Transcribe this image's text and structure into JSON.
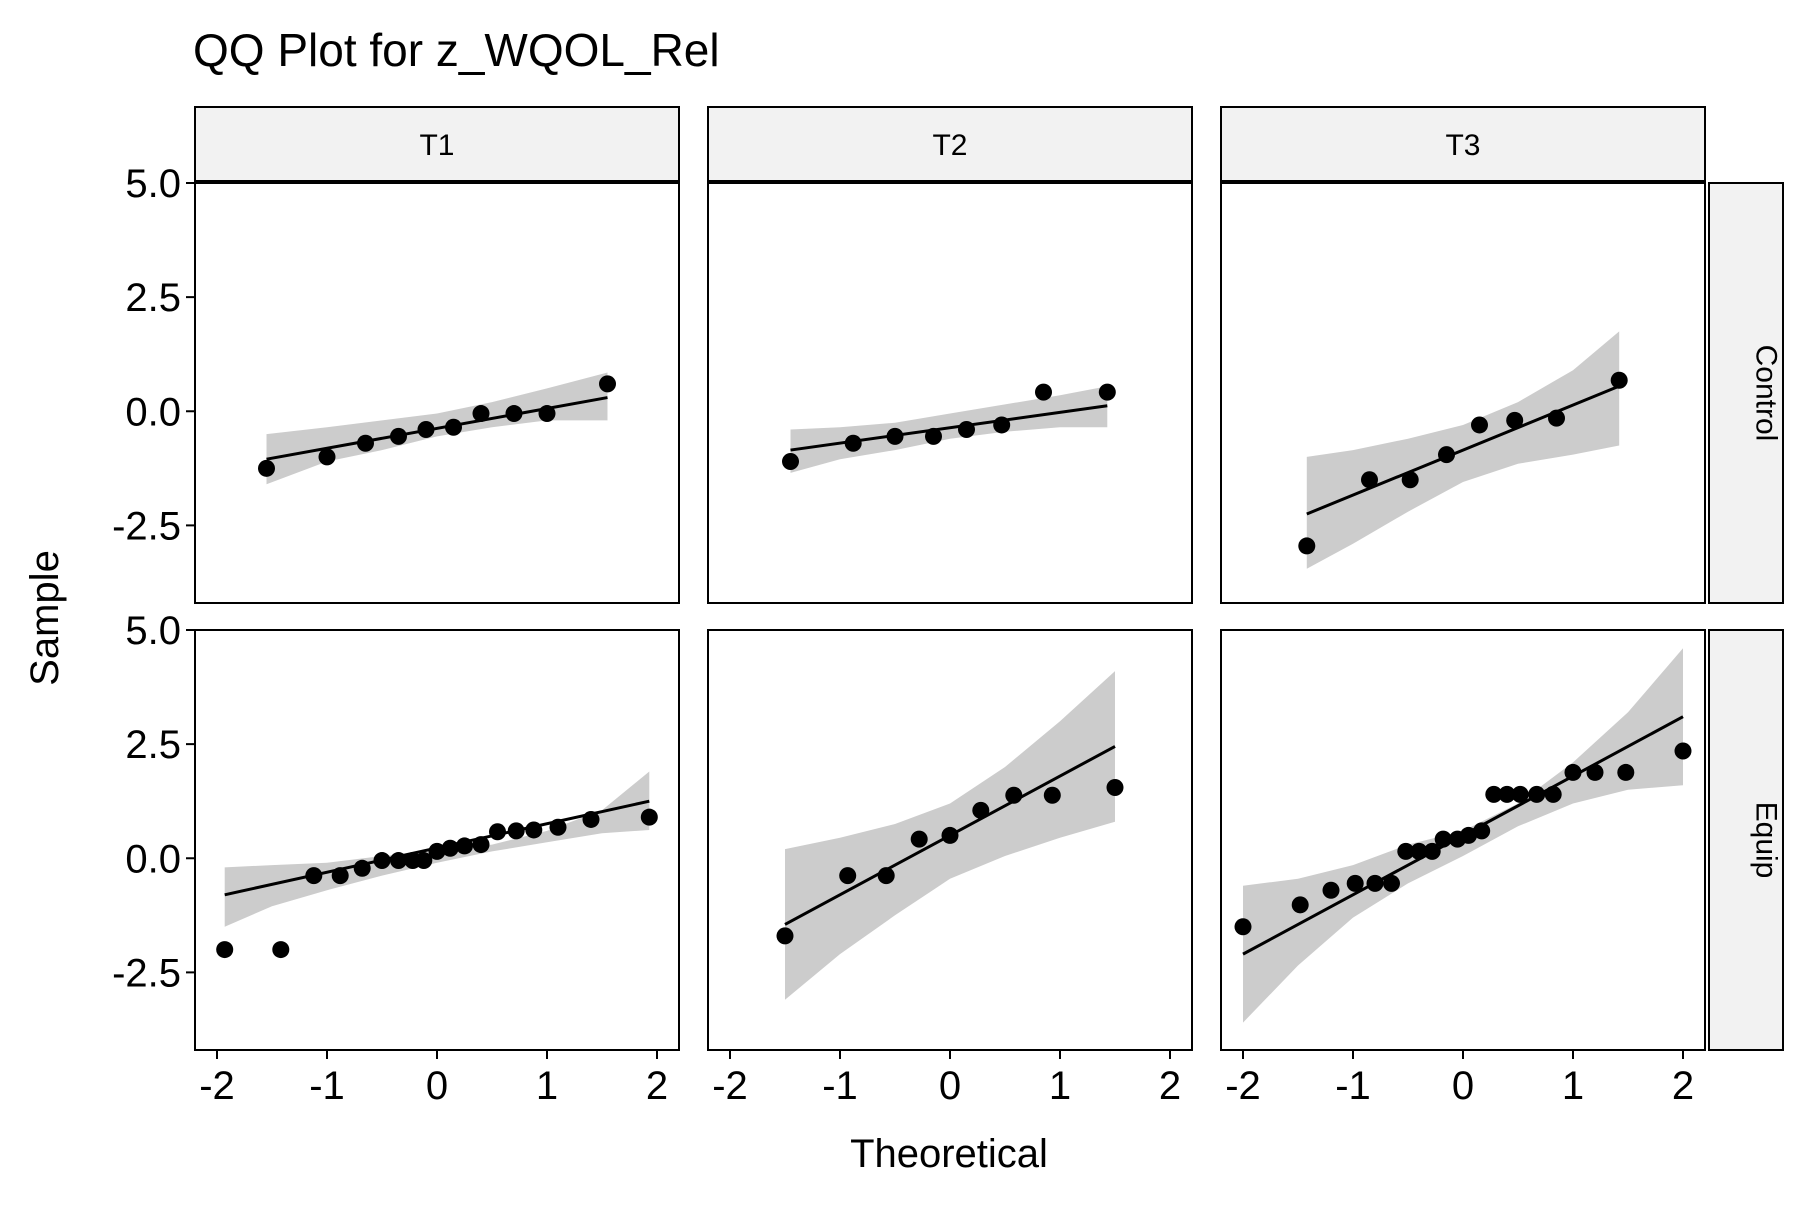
{
  "chart_data": {
    "type": "scatter",
    "title": "QQ Plot for z_WQOL_Rel",
    "xlabel": "Theoretical",
    "ylabel": "Sample",
    "xlim": [
      -2.2,
      2.2
    ],
    "ylim": [
      -4.2,
      5.0
    ],
    "x_ticks": [
      -2,
      -1,
      0,
      1,
      2
    ],
    "x_tick_labels": [
      "-2",
      "-1",
      "0",
      "1",
      "2"
    ],
    "y_ticks": [
      5.0,
      2.5,
      0.0,
      -2.5
    ],
    "y_tick_labels": [
      "5.0",
      "2.5",
      "0.0",
      "-2.5"
    ],
    "columns": [
      "T1",
      "T2",
      "T3"
    ],
    "rows": [
      "Control",
      "Equip"
    ],
    "grid": false,
    "colors": {
      "points": "#000000",
      "band": "#cccccc",
      "strip": "#f2f2f2",
      "line": "#000000"
    },
    "panels": [
      {
        "col": "T1",
        "row": "Control",
        "points": [
          [
            -1.55,
            -1.25
          ],
          [
            -1.0,
            -1.0
          ],
          [
            -0.65,
            -0.7
          ],
          [
            -0.35,
            -0.55
          ],
          [
            -0.1,
            -0.4
          ],
          [
            0.15,
            -0.35
          ],
          [
            0.4,
            -0.05
          ],
          [
            0.7,
            -0.05
          ],
          [
            1.0,
            -0.05
          ],
          [
            1.55,
            0.6
          ]
        ],
        "line": [
          [
            -1.55,
            -1.05
          ],
          [
            1.55,
            0.3
          ]
        ],
        "band": {
          "x": [
            -1.55,
            -1.0,
            -0.5,
            0,
            0.5,
            1.0,
            1.55
          ],
          "lower": [
            -1.6,
            -1.1,
            -0.85,
            -0.55,
            -0.35,
            -0.2,
            -0.2
          ],
          "upper": [
            -0.5,
            -0.35,
            -0.2,
            -0.05,
            0.2,
            0.5,
            0.85
          ]
        }
      },
      {
        "col": "T2",
        "row": "Control",
        "points": [
          [
            -1.45,
            -1.1
          ],
          [
            -0.88,
            -0.7
          ],
          [
            -0.5,
            -0.55
          ],
          [
            -0.15,
            -0.55
          ],
          [
            0.15,
            -0.4
          ],
          [
            0.47,
            -0.3
          ],
          [
            0.85,
            0.42
          ],
          [
            1.43,
            0.42
          ]
        ],
        "line": [
          [
            -1.45,
            -0.85
          ],
          [
            1.43,
            0.12
          ]
        ],
        "band": {
          "x": [
            -1.45,
            -1.0,
            -0.5,
            0,
            0.5,
            1.0,
            1.43
          ],
          "lower": [
            -1.35,
            -1.05,
            -0.85,
            -0.6,
            -0.45,
            -0.35,
            -0.35
          ],
          "upper": [
            -0.4,
            -0.35,
            -0.25,
            -0.05,
            0.15,
            0.35,
            0.55
          ]
        }
      },
      {
        "col": "T3",
        "row": "Control",
        "points": [
          [
            -1.42,
            -2.95
          ],
          [
            -0.85,
            -1.5
          ],
          [
            -0.48,
            -1.5
          ],
          [
            -0.15,
            -0.95
          ],
          [
            0.15,
            -0.3
          ],
          [
            0.47,
            -0.2
          ],
          [
            0.85,
            -0.15
          ],
          [
            1.42,
            0.68
          ]
        ],
        "line": [
          [
            -1.42,
            -2.25
          ],
          [
            1.42,
            0.55
          ]
        ],
        "band": {
          "x": [
            -1.42,
            -1.0,
            -0.5,
            0,
            0.5,
            1.0,
            1.42
          ],
          "lower": [
            -3.45,
            -2.9,
            -2.2,
            -1.55,
            -1.15,
            -0.95,
            -0.75
          ],
          "upper": [
            -1.0,
            -0.85,
            -0.6,
            -0.3,
            0.2,
            0.9,
            1.75
          ]
        }
      },
      {
        "col": "T1",
        "row": "Equip",
        "points": [
          [
            -1.93,
            -2.0
          ],
          [
            -1.42,
            -2.0
          ],
          [
            -1.12,
            -0.38
          ],
          [
            -0.88,
            -0.38
          ],
          [
            -0.68,
            -0.22
          ],
          [
            -0.5,
            -0.05
          ],
          [
            -0.35,
            -0.05
          ],
          [
            -0.22,
            -0.05
          ],
          [
            -0.12,
            -0.05
          ],
          [
            0.0,
            0.15
          ],
          [
            0.12,
            0.22
          ],
          [
            0.25,
            0.27
          ],
          [
            0.4,
            0.3
          ],
          [
            0.55,
            0.58
          ],
          [
            0.72,
            0.6
          ],
          [
            0.88,
            0.62
          ],
          [
            1.1,
            0.68
          ],
          [
            1.4,
            0.85
          ],
          [
            1.93,
            0.9
          ]
        ],
        "line": [
          [
            -1.93,
            -0.8
          ],
          [
            1.93,
            1.25
          ]
        ],
        "band": {
          "x": [
            -1.93,
            -1.5,
            -1.0,
            -0.5,
            0,
            0.5,
            1.0,
            1.5,
            1.93
          ],
          "lower": [
            -1.5,
            -1.05,
            -0.7,
            -0.38,
            -0.1,
            0.15,
            0.35,
            0.55,
            0.62
          ],
          "upper": [
            -0.2,
            -0.15,
            -0.1,
            0.05,
            0.15,
            0.3,
            0.6,
            1.05,
            1.9
          ]
        }
      },
      {
        "col": "T2",
        "row": "Equip",
        "points": [
          [
            -1.5,
            -1.7
          ],
          [
            -0.93,
            -0.38
          ],
          [
            -0.58,
            -0.38
          ],
          [
            -0.28,
            0.42
          ],
          [
            0.0,
            0.5
          ],
          [
            0.28,
            1.05
          ],
          [
            0.58,
            1.38
          ],
          [
            0.93,
            1.38
          ],
          [
            1.5,
            1.55
          ]
        ],
        "line": [
          [
            -1.5,
            -1.45
          ],
          [
            1.5,
            2.45
          ]
        ],
        "band": {
          "x": [
            -1.5,
            -1.0,
            -0.5,
            0,
            0.5,
            1.0,
            1.5
          ],
          "lower": [
            -3.1,
            -2.1,
            -1.25,
            -0.45,
            0.05,
            0.45,
            0.8
          ],
          "upper": [
            0.2,
            0.45,
            0.75,
            1.2,
            2.0,
            3.0,
            4.1
          ]
        }
      },
      {
        "col": "T3",
        "row": "Equip",
        "points": [
          [
            -2.0,
            -1.5
          ],
          [
            -1.48,
            -1.02
          ],
          [
            -1.2,
            -0.7
          ],
          [
            -0.98,
            -0.55
          ],
          [
            -0.8,
            -0.55
          ],
          [
            -0.65,
            -0.55
          ],
          [
            -0.52,
            0.15
          ],
          [
            -0.4,
            0.15
          ],
          [
            -0.28,
            0.15
          ],
          [
            -0.18,
            0.42
          ],
          [
            -0.05,
            0.42
          ],
          [
            0.05,
            0.5
          ],
          [
            0.17,
            0.6
          ],
          [
            0.28,
            1.4
          ],
          [
            0.4,
            1.4
          ],
          [
            0.52,
            1.4
          ],
          [
            0.67,
            1.4
          ],
          [
            0.82,
            1.4
          ],
          [
            1.0,
            1.88
          ],
          [
            1.2,
            1.88
          ],
          [
            1.48,
            1.88
          ],
          [
            2.0,
            2.35
          ]
        ],
        "line": [
          [
            -2.0,
            -2.1
          ],
          [
            2.0,
            3.1
          ]
        ],
        "band": {
          "x": [
            -2.0,
            -1.5,
            -1.0,
            -0.5,
            0,
            0.5,
            1.0,
            1.5,
            2.0
          ],
          "lower": [
            -3.6,
            -2.35,
            -1.3,
            -0.55,
            0.05,
            0.7,
            1.2,
            1.5,
            1.6
          ],
          "upper": [
            -0.6,
            -0.45,
            -0.15,
            0.3,
            0.6,
            1.2,
            2.1,
            3.2,
            4.6
          ]
        }
      }
    ]
  }
}
